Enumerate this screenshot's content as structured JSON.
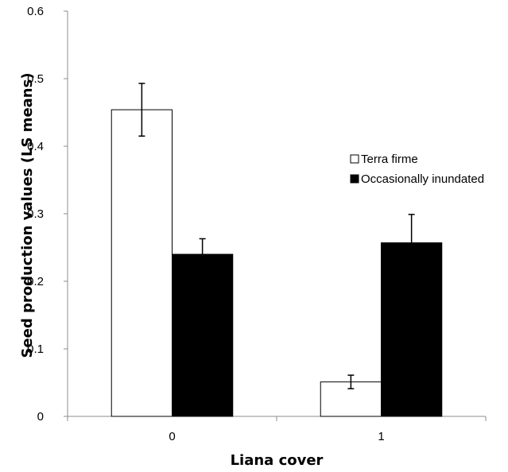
{
  "chart_data": {
    "type": "bar",
    "title": "",
    "xlabel": "Liana cover",
    "ylabel": "Seed production values (LS means)",
    "categories": [
      "0",
      "1"
    ],
    "ylim": [
      0,
      0.6
    ],
    "yticks": [
      "0",
      "0.1",
      "0.2",
      "0.3",
      "0.4",
      "0.5",
      "0.6"
    ],
    "grid": false,
    "legend_position": "top-right",
    "series": [
      {
        "name": "Terra firme",
        "color": "#ffffff",
        "values": [
          0.454,
          0.051
        ],
        "errors": [
          0.039,
          0.01
        ]
      },
      {
        "name": "Occasionally inundated",
        "color": "#000000",
        "values": [
          0.24,
          0.257
        ],
        "errors": [
          0.023,
          0.042
        ]
      }
    ]
  }
}
